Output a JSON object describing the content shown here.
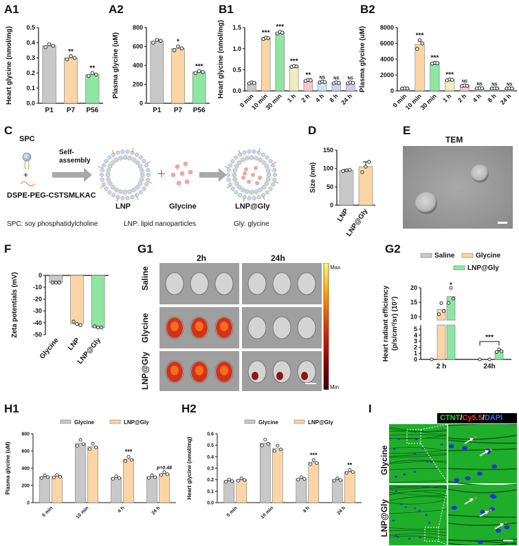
{
  "panel_labels": {
    "A1": "A1",
    "A2": "A2",
    "B1": "B1",
    "B2": "B2",
    "C": "C",
    "D": "D",
    "E": "E",
    "F": "F",
    "G1": "G1",
    "G2": "G2",
    "H1": "H1",
    "H2": "H2",
    "I": "I"
  },
  "chart_data": [
    {
      "id": "A1",
      "type": "bar",
      "categories": [
        "P1",
        "P7",
        "P56"
      ],
      "values": [
        0.38,
        0.3,
        0.19
      ],
      "points": [
        [
          0.37,
          0.39,
          0.38
        ],
        [
          0.29,
          0.31,
          0.3
        ],
        [
          0.18,
          0.2,
          0.19
        ]
      ],
      "ylabel": "Heart glycine (nmol/mg)",
      "ylim": [
        0,
        0.5
      ],
      "yticks": [
        0.0,
        0.1,
        0.2,
        0.3,
        0.4,
        0.5
      ],
      "ytick_labels": [
        "0.0",
        "0.1",
        "0.2",
        "0.3",
        "0.4",
        "0.5"
      ],
      "sig": [
        "",
        "**",
        "**"
      ],
      "colors": [
        "#c8c8c8",
        "#fbd5a5",
        "#8fe6a2"
      ]
    },
    {
      "id": "A2",
      "type": "bar",
      "categories": [
        "P1",
        "P7",
        "P56"
      ],
      "values": [
        655,
        580,
        330
      ],
      "points": [
        [
          640,
          670,
          660
        ],
        [
          560,
          600,
          580
        ],
        [
          320,
          340,
          330
        ]
      ],
      "ylabel": "Plasma glycine (uM)",
      "ylim": [
        0,
        800
      ],
      "yticks": [
        0,
        200,
        400,
        600,
        800
      ],
      "ytick_labels": [
        "0",
        "200",
        "400",
        "600",
        "800"
      ],
      "sig": [
        "",
        "*",
        "***"
      ],
      "colors": [
        "#c8c8c8",
        "#fbd5a5",
        "#8fe6a2"
      ]
    },
    {
      "id": "B1",
      "type": "bar",
      "categories": [
        "0 min",
        "10 min",
        "30 min",
        "1 h",
        "2 h",
        "4 h",
        "8 h",
        "24 h"
      ],
      "values": [
        0.19,
        1.25,
        1.38,
        0.58,
        0.25,
        0.21,
        0.19,
        0.19
      ],
      "points": [
        [
          0.18,
          0.2,
          0.19
        ],
        [
          1.23,
          1.26,
          1.25
        ],
        [
          1.36,
          1.4,
          1.38
        ],
        [
          0.57,
          0.59,
          0.58
        ],
        [
          0.24,
          0.26,
          0.25
        ],
        [
          0.2,
          0.22,
          0.21
        ],
        [
          0.18,
          0.2,
          0.19
        ],
        [
          0.18,
          0.2,
          0.19
        ]
      ],
      "ylabel": "Heart glycine (nmol/mg)",
      "ylim": [
        0,
        1.5
      ],
      "yticks": [
        0.0,
        0.5,
        1.0,
        1.5
      ],
      "ytick_labels": [
        "0.0",
        "0.5",
        "1.0",
        "1.5"
      ],
      "sig": [
        "",
        "***",
        "***",
        "***",
        "**",
        "NS",
        "NS",
        "NS"
      ],
      "colors": [
        "#c8c8c8",
        "#fbd5a5",
        "#8fe6a2",
        "#f2ecc0",
        "#f7c8d0",
        "#c8e6f7",
        "#c5d7f2",
        "#d9c8f2"
      ]
    },
    {
      "id": "B2",
      "type": "bar",
      "categories": [
        "0 min",
        "10 min",
        "30 min",
        "1 h",
        "2 h",
        "4 h",
        "8 h",
        "24 h"
      ],
      "values": [
        310,
        5900,
        3500,
        1400,
        650,
        330,
        310,
        310
      ],
      "points": [
        [
          300,
          320,
          310
        ],
        [
          5300,
          6400,
          6000
        ],
        [
          3450,
          3550,
          3500
        ],
        [
          1350,
          1450,
          1400
        ],
        [
          620,
          680,
          650
        ],
        [
          320,
          340,
          330
        ],
        [
          300,
          320,
          310
        ],
        [
          300,
          320,
          310
        ]
      ],
      "ylabel": "Plasma glycine (uM)",
      "ylim": [
        0,
        8000
      ],
      "yticks": [
        0,
        2000,
        4000,
        6000,
        8000
      ],
      "ytick_labels": [
        "0",
        "2000",
        "4000",
        "6000",
        "8000"
      ],
      "sig": [
        "",
        "***",
        "***",
        "***",
        "NS",
        "NS",
        "NS",
        "NS"
      ],
      "colors": [
        "#c8c8c8",
        "#fbd5a5",
        "#8fe6a2",
        "#f2ecc0",
        "#f7c8d0",
        "#c8e6f7",
        "#c5d7f2",
        "#d9c8f2"
      ]
    },
    {
      "id": "D",
      "type": "bar",
      "categories": [
        "LNP",
        "LNP@Gly"
      ],
      "values": [
        95,
        105
      ],
      "points": [
        [
          93,
          95,
          96
        ],
        [
          90,
          105,
          118
        ]
      ],
      "errors": [
        2,
        13
      ],
      "ylabel": "Size (nm)",
      "ylim": [
        0,
        150
      ],
      "yticks": [
        0,
        50,
        100,
        150
      ],
      "ytick_labels": [
        "0",
        "50",
        "100",
        "150"
      ],
      "colors": [
        "#c8c8c8",
        "#fbd5a5"
      ]
    },
    {
      "id": "F",
      "type": "bar",
      "categories": [
        "Glycine",
        "LNP",
        "LNP@Gly"
      ],
      "values": [
        -6,
        -41,
        -44
      ],
      "points": [
        [
          -6,
          -6,
          -6
        ],
        [
          -39,
          -41,
          -42
        ],
        [
          -43,
          -44,
          -44
        ]
      ],
      "ylabel": "Zeta potentials (mV)",
      "ylim": [
        -50,
        0
      ],
      "yticks": [
        0,
        -10,
        -20,
        -30,
        -40,
        -50
      ],
      "ytick_labels": [
        "0",
        "-10",
        "-20",
        "-30",
        "-40",
        "-50"
      ],
      "colors": [
        "#c8c8c8",
        "#fbd5a5",
        "#8fe6a2"
      ]
    },
    {
      "id": "G2",
      "type": "bar",
      "categories": [
        "2 h",
        "24h"
      ],
      "series": [
        {
          "name": "Saline",
          "values": [
            0,
            0
          ]
        },
        {
          "name": "Glycine",
          "values": [
            12.5,
            0
          ]
        },
        {
          "name": "LNP@Gly",
          "values": [
            17,
            1.4
          ]
        }
      ],
      "ylabel": "Heart radiant efficiency",
      "ylabel2": "(p/s/cm²/sr) (10⁷)",
      "yticks": [
        0,
        1,
        2,
        3,
        4,
        5,
        10,
        15,
        20
      ],
      "ytick_labels": [
        "0",
        "1",
        "2",
        "3",
        "4",
        "5",
        "10",
        "15",
        "20"
      ],
      "sig": [
        "*",
        "***"
      ],
      "colors": [
        "#c8c8c8",
        "#fbd5a5",
        "#8fe6a2"
      ]
    },
    {
      "id": "H1",
      "type": "bar",
      "categories": [
        "0 min",
        "10 min",
        "4 h",
        "24 h"
      ],
      "series": [
        {
          "name": "Glycine",
          "values": [
            300,
            690,
            290,
            300
          ]
        },
        {
          "name": "LNP@Gly",
          "values": [
            305,
            650,
            505,
            335
          ]
        }
      ],
      "ylabel": "Plasma glycine (uM)",
      "ylim": [
        0,
        800
      ],
      "yticks": [
        0,
        200,
        400,
        600,
        800
      ],
      "ytick_labels": [
        "0",
        "200",
        "400",
        "600",
        "800"
      ],
      "sig": [
        "",
        "",
        "***",
        "p=0.48"
      ],
      "colors": [
        "#c8c8c8",
        "#fbd5a5"
      ]
    },
    {
      "id": "H2",
      "type": "bar",
      "categories": [
        "0 min",
        "10 min",
        "4 h",
        "24 h"
      ],
      "series": [
        {
          "name": "Glycine",
          "values": [
            0.19,
            0.52,
            0.21,
            0.2
          ]
        },
        {
          "name": "LNP@Gly",
          "values": [
            0.2,
            0.47,
            0.35,
            0.27
          ]
        }
      ],
      "ylabel": "Heart glycine (nmol/mg)",
      "ylim": [
        0,
        0.6
      ],
      "yticks": [
        0.0,
        0.1,
        0.2,
        0.3,
        0.4,
        0.5,
        0.6
      ],
      "ytick_labels": [
        "0.0",
        "0.1",
        "0.2",
        "0.3",
        "0.4",
        "0.5",
        "0.6"
      ],
      "sig": [
        "",
        "",
        "***",
        "**"
      ],
      "colors": [
        "#c8c8c8",
        "#fbd5a5"
      ]
    }
  ],
  "panel_c": {
    "spc": "SPC",
    "plus": "+",
    "self_assembly": "Self-\nassembly",
    "dspe": "DSPE-PEG-CSTSMLKAC",
    "lnp": "LNP",
    "plus2": "+",
    "glycine": "Glycine",
    "lnp_gly": "LNP@Gly",
    "spc_def": "SPC: soy phosphatidylcholine",
    "lnp_def": "LNP: lipid nanoparticles",
    "gly_def": "Gly: glycine"
  },
  "panel_e": {
    "title": "TEM"
  },
  "panel_g1": {
    "col1": "2h",
    "col2": "24h",
    "row1": "Saline",
    "row2": "Glycine",
    "row3": "LNP@Gly",
    "max": "Max",
    "min": "Min"
  },
  "panel_i": {
    "legend_ctnt": "CTNT",
    "legend_sep1": "/",
    "legend_cy": "Cy5.5",
    "legend_sep2": "/",
    "legend_dapi": "DAPI",
    "row1": "Glycine",
    "row2": "LNP@Gly"
  }
}
